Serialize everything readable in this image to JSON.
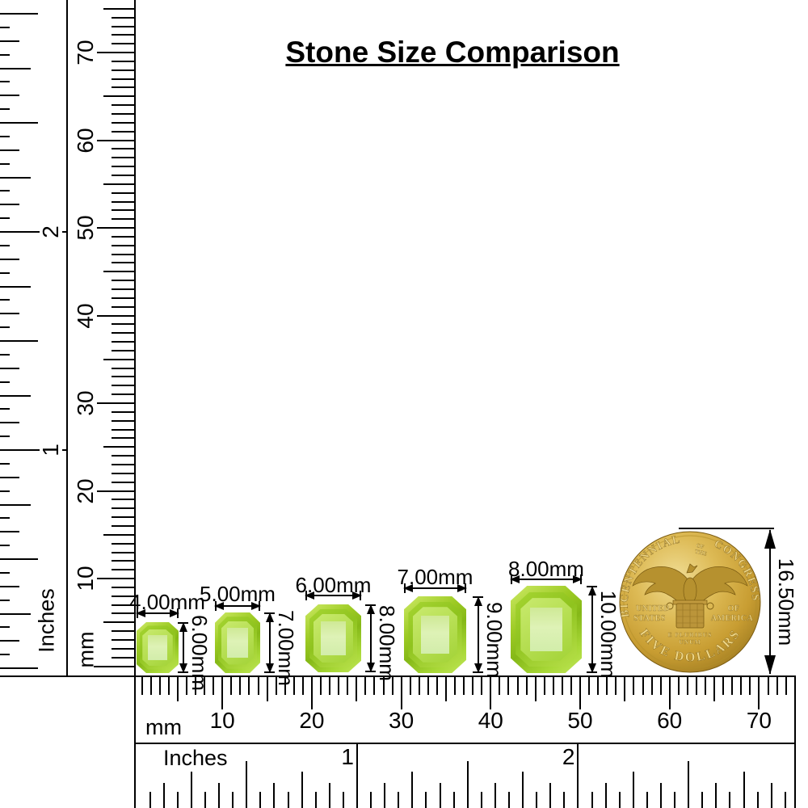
{
  "title": "Stone Size Comparison",
  "rulers": {
    "left_inches": {
      "unit": "Inches",
      "numbers": [
        "2",
        "1"
      ]
    },
    "left_mm": {
      "unit": "mm",
      "numbers": [
        "70",
        "60",
        "50",
        "40",
        "30",
        "20",
        "10"
      ]
    },
    "bottom_mm": {
      "unit": "mm",
      "numbers": [
        "10",
        "20",
        "30",
        "40",
        "50",
        "60",
        "70"
      ]
    },
    "bottom_inches": {
      "unit": "Inches",
      "numbers": [
        "1",
        "2"
      ]
    }
  },
  "stones": [
    {
      "width_label": "4.00mm",
      "height_label": "6.00mm"
    },
    {
      "width_label": "5.00mm",
      "height_label": "7.00mm"
    },
    {
      "width_label": "6.00mm",
      "height_label": "8.00mm"
    },
    {
      "width_label": "7.00mm",
      "height_label": "9.00mm"
    },
    {
      "width_label": "8.00mm",
      "height_label": "10.00mm"
    }
  ],
  "coin": {
    "arc_text_left": "BICENTENNIAL",
    "arc_text_small_1": "OF",
    "arc_text_small_2": "THE",
    "arc_text_right": "CONGRESS",
    "side_left_line1": "UNITED",
    "side_left_line2": "STATES",
    "side_right_line1": "OF",
    "side_right_line2": "AMERICA",
    "motto_line1": "E PLURIBUS",
    "motto_line2": "UNUM",
    "arc_text_bottom": "FIVE DOLLARS",
    "dimension_label": "16.50mm"
  },
  "colors": {
    "stone_green": "#9cca23",
    "stone_light": "#ddf2b4",
    "coin_gold": "#cda43c",
    "ink": "#000000"
  }
}
